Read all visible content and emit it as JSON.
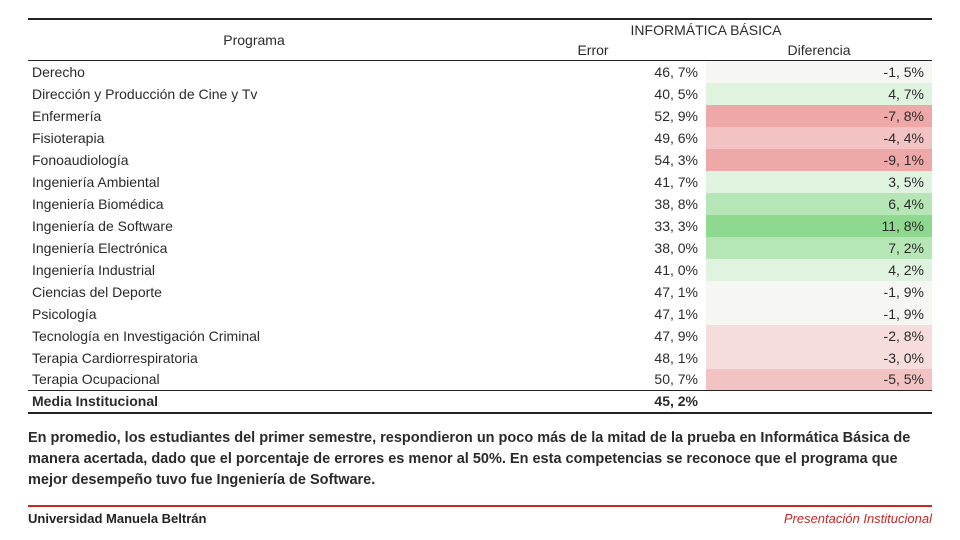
{
  "colors": {
    "accent_red": "#c62828",
    "border": "#222222",
    "green_strong": "#8fd88f",
    "green_mid": "#b6e6b6",
    "green_light": "#dff3df",
    "neutral": "#f6f6f2",
    "red_light": "#f6dcdc",
    "red_mid": "#f3c3c3",
    "red_strong": "#eea8a8"
  },
  "table": {
    "header": {
      "programa": "Programa",
      "group": "INFORMÁTICA BÁSICA",
      "error": "Error",
      "diferencia": "Diferencia"
    },
    "rows": [
      {
        "programa": "Derecho",
        "error": "46, 7%",
        "diff": "-1, 5%"
      },
      {
        "programa": "Dirección y Producción de Cine y Tv",
        "error": "40, 5%",
        "diff": "4, 7%"
      },
      {
        "programa": "Enfermería",
        "error": "52, 9%",
        "diff": "-7, 8%"
      },
      {
        "programa": "Fisioterapia",
        "error": "49, 6%",
        "diff": "-4, 4%"
      },
      {
        "programa": "Fonoaudiología",
        "error": "54, 3%",
        "diff": "-9, 1%"
      },
      {
        "programa": "Ingeniería Ambiental",
        "error": "41, 7%",
        "diff": "3, 5%"
      },
      {
        "programa": "Ingeniería Biomédica",
        "error": "38, 8%",
        "diff": "6, 4%"
      },
      {
        "programa": "Ingeniería de Software",
        "error": "33, 3%",
        "diff": "11, 8%"
      },
      {
        "programa": "Ingeniería Electrónica",
        "error": "38, 0%",
        "diff": "7, 2%"
      },
      {
        "programa": "Ingeniería Industrial",
        "error": "41, 0%",
        "diff": "4, 2%"
      },
      {
        "programa": "Ciencias del Deporte",
        "error": "47, 1%",
        "diff": "-1, 9%"
      },
      {
        "programa": "Psicología",
        "error": "47, 1%",
        "diff": "-1, 9%"
      },
      {
        "programa": "Tecnología en Investigación Criminal",
        "error": "47, 9%",
        "diff": "-2, 8%"
      },
      {
        "programa": "Terapia Cardiorrespiratoria",
        "error": "48, 1%",
        "diff": "-3, 0%"
      },
      {
        "programa": "Terapia Ocupacional",
        "error": "50, 7%",
        "diff": "-5, 5%"
      }
    ],
    "media_label": "Media Institucional",
    "media_error": "45, 2%"
  },
  "caption": "En promedio, los estudiantes del primer semestre, respondieron un poco más de la mitad de la prueba en Informática Básica de manera acertada, dado que el porcentaje de errores es menor al 50%.  En esta competencias se reconoce que el programa que mejor desempeño tuvo fue Ingeniería de Software.",
  "footer": {
    "left_1": "Universidad",
    "left_2": "Manuela Beltrán",
    "right": "Presentación Institucional"
  }
}
